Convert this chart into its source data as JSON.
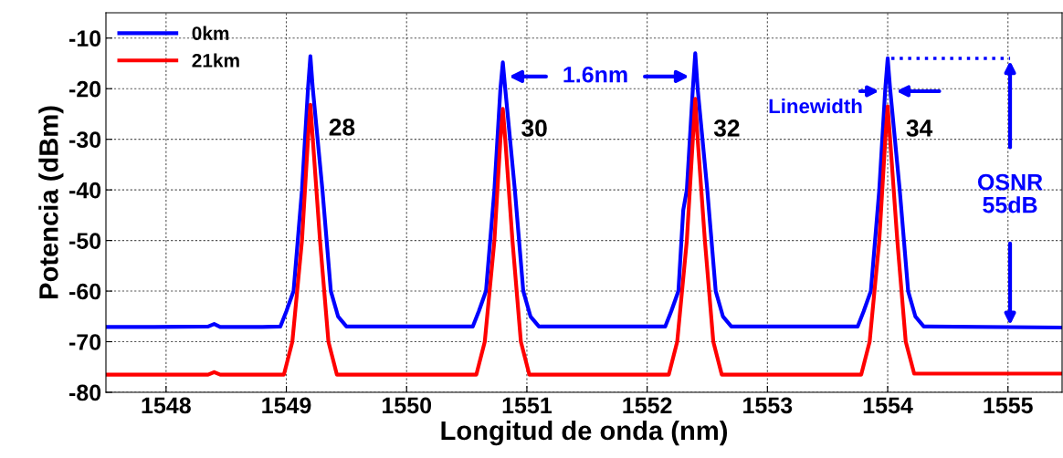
{
  "chart_data": {
    "type": "line",
    "xlabel": "Longitud de onda (nm)",
    "ylabel": "Potencia (dBm)",
    "xlim": [
      1547.5,
      1555.45
    ],
    "ylim": [
      -80,
      -5
    ],
    "xticks": [
      1548,
      1549,
      1550,
      1551,
      1552,
      1553,
      1554,
      1555
    ],
    "yticks": [
      -80,
      -70,
      -60,
      -50,
      -40,
      -30,
      -20,
      -10
    ],
    "grid": true,
    "legend": "top left",
    "line_style": "solid",
    "marker": "none",
    "series": [
      {
        "name": "0km",
        "color": "#0000ff",
        "x": [
          1547.5,
          1547.9,
          1548.35,
          1548.4,
          1548.45,
          1548.8,
          1548.95,
          1549.0,
          1549.06,
          1549.13,
          1549.18,
          1549.2,
          1549.22,
          1549.3,
          1549.37,
          1549.43,
          1549.5,
          1550.5,
          1550.55,
          1550.6,
          1550.66,
          1550.73,
          1550.78,
          1550.8,
          1550.82,
          1550.9,
          1550.97,
          1551.03,
          1551.1,
          1552.1,
          1552.15,
          1552.2,
          1552.26,
          1552.3,
          1552.33,
          1552.38,
          1552.4,
          1552.42,
          1552.5,
          1552.57,
          1552.63,
          1552.7,
          1553.7,
          1553.75,
          1553.8,
          1553.86,
          1553.93,
          1553.98,
          1554.0,
          1554.02,
          1554.1,
          1554.17,
          1554.23,
          1554.3,
          1555.45
        ],
        "values": [
          -67.1,
          -67.1,
          -67.0,
          -66.5,
          -67.1,
          -67.1,
          -67,
          -64,
          -60,
          -40,
          -20,
          -13.6,
          -20,
          -40,
          -60,
          -65,
          -67,
          -67,
          -67,
          -64,
          -60,
          -40,
          -20,
          -14.8,
          -20,
          -40,
          -60,
          -65,
          -67,
          -67,
          -67,
          -64,
          -60,
          -44,
          -40,
          -20,
          -13,
          -20,
          -40,
          -60,
          -65,
          -67,
          -67,
          -67,
          -64,
          -60,
          -40,
          -20,
          -14,
          -20,
          -40,
          -60,
          -65,
          -67,
          -67.2
        ]
      },
      {
        "name": "21km",
        "color": "#ff0000",
        "x": [
          1547.5,
          1547.9,
          1548.35,
          1548.4,
          1548.45,
          1548.8,
          1548.98,
          1549.05,
          1549.13,
          1549.18,
          1549.2,
          1549.22,
          1549.28,
          1549.35,
          1549.42,
          1550.58,
          1550.65,
          1550.73,
          1550.78,
          1550.8,
          1550.82,
          1550.88,
          1550.95,
          1551.02,
          1552.18,
          1552.25,
          1552.33,
          1552.38,
          1552.4,
          1552.42,
          1552.48,
          1552.55,
          1552.62,
          1553.78,
          1553.85,
          1553.93,
          1553.98,
          1554.0,
          1554.02,
          1554.08,
          1554.15,
          1554.22,
          1555.45
        ],
        "values": [
          -76.5,
          -76.5,
          -76.5,
          -76.0,
          -76.5,
          -76.5,
          -76.5,
          -70,
          -50,
          -30,
          -23.2,
          -30,
          -50,
          -70,
          -76.5,
          -76.5,
          -70,
          -50,
          -30,
          -24,
          -30,
          -50,
          -70,
          -76.5,
          -76.5,
          -70,
          -50,
          -30,
          -22,
          -30,
          -50,
          -70,
          -76.5,
          -76.5,
          -70,
          -50,
          -30,
          -23.5,
          -30,
          -50,
          -70,
          -76.3,
          -76.3
        ]
      }
    ],
    "annotations": [
      "28",
      "30",
      "32",
      "34",
      "1.6nm",
      "Linewidth",
      "OSNR\n55dB"
    ]
  }
}
